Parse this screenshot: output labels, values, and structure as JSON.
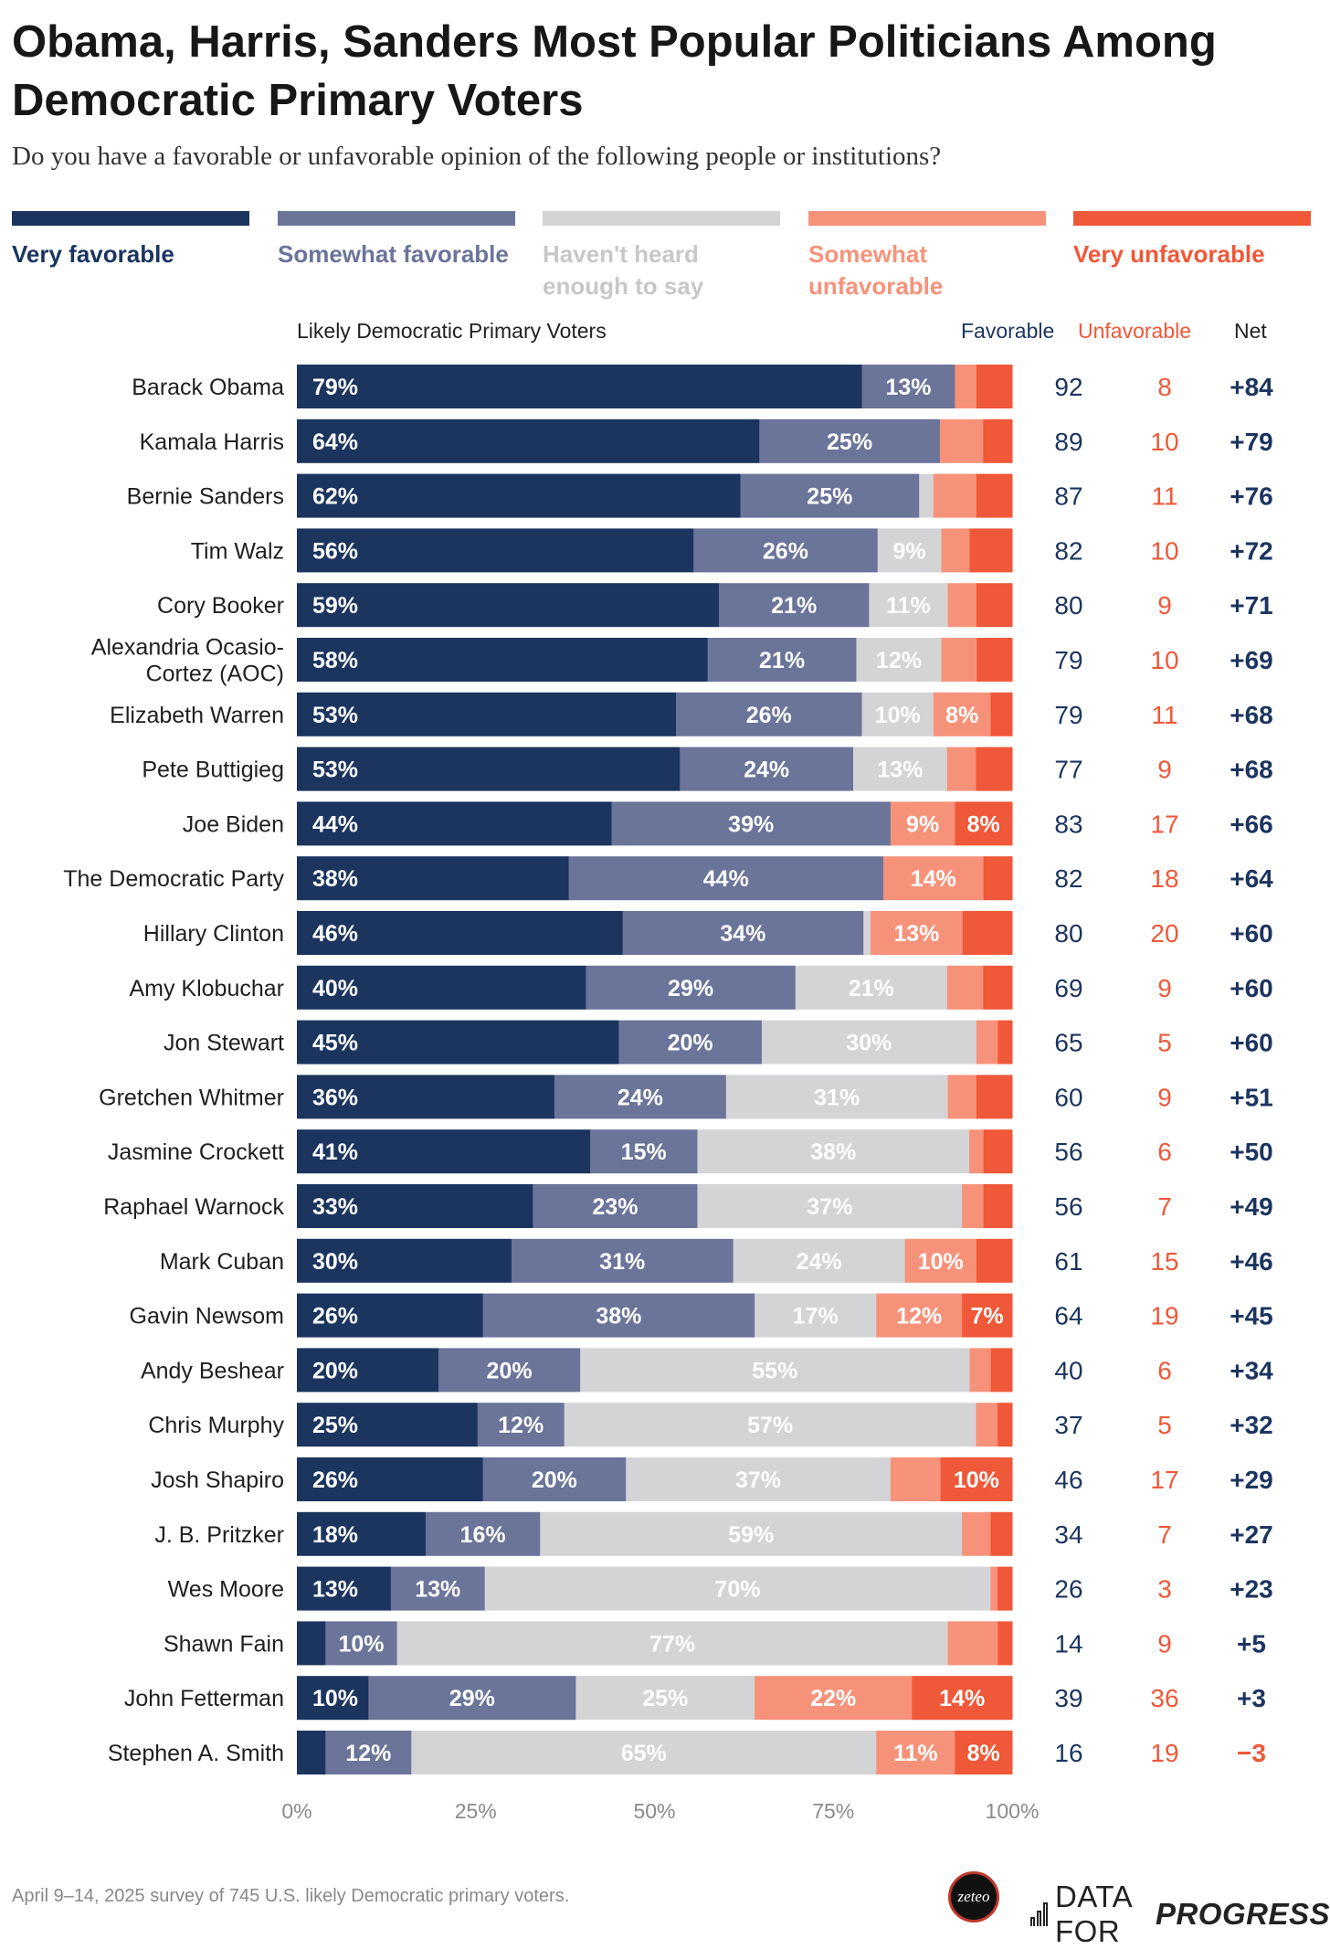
{
  "title": "Obama, Harris, Sanders Most Popular Politicians Among Democratic Primary Voters",
  "subtitle": "Do you have a favorable or unfavorable opinion of the following people or institutions?",
  "legend": [
    {
      "label": "Very favorable",
      "color": "#1b355f",
      "text_color": "#1b355f"
    },
    {
      "label": "Somewhat favorable",
      "color": "#6b7499",
      "text_color": "#6b7499"
    },
    {
      "label": "Haven't heard enough to say",
      "color": "#d4d4d6",
      "text_color": "#c7c7c9"
    },
    {
      "label": "Somewhat unfavorable",
      "color": "#f7927a",
      "text_color": "#f7927a"
    },
    {
      "label": "Very unfavorable",
      "color": "#ef5838",
      "text_color": "#ef5838"
    }
  ],
  "columns": {
    "group_label": "Likely Democratic Primary Voters",
    "favorable": "Favorable",
    "unfavorable": "Unfavorable",
    "net": "Net"
  },
  "colors": {
    "favorable_text": "#1b355f",
    "unfavorable_text": "#ef5838"
  },
  "footer": "April 9–14, 2025 survey of 745 U.S. likely Democratic primary voters.",
  "logos": {
    "zeteo": "zeteo",
    "dfp_plain": "DATA FOR",
    "dfp_bold": "PROGRESS"
  },
  "chart_data": {
    "type": "bar",
    "orientation": "horizontal-stacked-100",
    "title": "Obama, Harris, Sanders Most Popular Politicians Among Democratic Primary Voters",
    "xlabel": "",
    "ylabel": "",
    "xlim": [
      0,
      100
    ],
    "x_ticks": [
      "0%",
      "25%",
      "50%",
      "75%",
      "100%"
    ],
    "segments": [
      "Very favorable",
      "Somewhat favorable",
      "Haven't heard enough to say",
      "Somewhat unfavorable",
      "Very unfavorable"
    ],
    "rows": [
      {
        "name": "Barack Obama",
        "values": [
          79,
          13,
          0,
          3,
          5
        ],
        "labels": [
          "79%",
          "13%",
          "",
          "",
          ""
        ],
        "favorable": "92",
        "unfavorable": "8",
        "net": "+84"
      },
      {
        "name": "Kamala Harris",
        "values": [
          64,
          25,
          0,
          6,
          4
        ],
        "labels": [
          "64%",
          "25%",
          "",
          "",
          ""
        ],
        "favorable": "89",
        "unfavorable": "10",
        "net": "+79"
      },
      {
        "name": "Bernie Sanders",
        "values": [
          62,
          25,
          2,
          6,
          5
        ],
        "labels": [
          "62%",
          "25%",
          "",
          "",
          ""
        ],
        "favorable": "87",
        "unfavorable": "11",
        "net": "+76"
      },
      {
        "name": "Tim Walz",
        "values": [
          56,
          26,
          9,
          4,
          6
        ],
        "labels": [
          "56%",
          "26%",
          "9%",
          "",
          ""
        ],
        "favorable": "82",
        "unfavorable": "10",
        "net": "+72"
      },
      {
        "name": "Cory Booker",
        "values": [
          59,
          21,
          11,
          4,
          5
        ],
        "labels": [
          "59%",
          "21%",
          "11%",
          "",
          ""
        ],
        "favorable": "80",
        "unfavorable": "9",
        "net": "+71"
      },
      {
        "name": "Alexandria Ocasio-Cortez (AOC)",
        "name_lines": [
          "Alexandria Ocasio-",
          "Cortez (AOC)"
        ],
        "values": [
          58,
          21,
          12,
          5,
          5
        ],
        "labels": [
          "58%",
          "21%",
          "12%",
          "",
          ""
        ],
        "favorable": "79",
        "unfavorable": "10",
        "net": "+69"
      },
      {
        "name": "Elizabeth Warren",
        "values": [
          53,
          26,
          10,
          8,
          3
        ],
        "labels": [
          "53%",
          "26%",
          "10%",
          "8%",
          ""
        ],
        "favorable": "79",
        "unfavorable": "11",
        "net": "+68"
      },
      {
        "name": "Pete Buttigieg",
        "values": [
          53,
          24,
          13,
          4,
          5
        ],
        "labels": [
          "53%",
          "24%",
          "13%",
          "",
          ""
        ],
        "favorable": "77",
        "unfavorable": "9",
        "net": "+68"
      },
      {
        "name": "Joe Biden",
        "values": [
          44,
          39,
          0,
          9,
          8
        ],
        "labels": [
          "44%",
          "39%",
          "",
          "9%",
          "8%"
        ],
        "favorable": "83",
        "unfavorable": "17",
        "net": "+66"
      },
      {
        "name": "The Democratic Party",
        "values": [
          38,
          44,
          0,
          14,
          4
        ],
        "labels": [
          "38%",
          "44%",
          "",
          "14%",
          ""
        ],
        "favorable": "82",
        "unfavorable": "18",
        "net": "+64"
      },
      {
        "name": "Hillary Clinton",
        "values": [
          46,
          34,
          1,
          13,
          7
        ],
        "labels": [
          "46%",
          "34%",
          "",
          "13%",
          ""
        ],
        "favorable": "80",
        "unfavorable": "20",
        "net": "+60"
      },
      {
        "name": "Amy Klobuchar",
        "values": [
          40,
          29,
          21,
          5,
          4
        ],
        "labels": [
          "40%",
          "29%",
          "21%",
          "",
          ""
        ],
        "favorable": "69",
        "unfavorable": "9",
        "net": "+60"
      },
      {
        "name": "Jon Stewart",
        "values": [
          45,
          20,
          30,
          3,
          2
        ],
        "labels": [
          "45%",
          "20%",
          "30%",
          "",
          ""
        ],
        "favorable": "65",
        "unfavorable": "5",
        "net": "+60"
      },
      {
        "name": "Gretchen Whitmer",
        "values": [
          36,
          24,
          31,
          4,
          5
        ],
        "labels": [
          "36%",
          "24%",
          "31%",
          "",
          ""
        ],
        "favorable": "60",
        "unfavorable": "9",
        "net": "+51"
      },
      {
        "name": "Jasmine Crockett",
        "values": [
          41,
          15,
          38,
          2,
          4
        ],
        "labels": [
          "41%",
          "15%",
          "38%",
          "",
          ""
        ],
        "favorable": "56",
        "unfavorable": "6",
        "net": "+50"
      },
      {
        "name": "Raphael Warnock",
        "values": [
          33,
          23,
          37,
          3,
          4
        ],
        "labels": [
          "33%",
          "23%",
          "37%",
          "",
          ""
        ],
        "favorable": "56",
        "unfavorable": "7",
        "net": "+49"
      },
      {
        "name": "Mark Cuban",
        "values": [
          30,
          31,
          24,
          10,
          5
        ],
        "labels": [
          "30%",
          "31%",
          "24%",
          "10%",
          ""
        ],
        "favorable": "61",
        "unfavorable": "15",
        "net": "+46"
      },
      {
        "name": "Gavin Newsom",
        "values": [
          26,
          38,
          17,
          12,
          7
        ],
        "labels": [
          "26%",
          "38%",
          "17%",
          "12%",
          "7%"
        ],
        "favorable": "64",
        "unfavorable": "19",
        "net": "+45"
      },
      {
        "name": "Andy Beshear",
        "values": [
          20,
          20,
          55,
          3,
          3
        ],
        "labels": [
          "20%",
          "20%",
          "55%",
          "",
          ""
        ],
        "favorable": "40",
        "unfavorable": "6",
        "net": "+34"
      },
      {
        "name": "Chris Murphy",
        "values": [
          25,
          12,
          57,
          3,
          2
        ],
        "labels": [
          "25%",
          "12%",
          "57%",
          "",
          ""
        ],
        "favorable": "37",
        "unfavorable": "5",
        "net": "+32"
      },
      {
        "name": "Josh Shapiro",
        "values": [
          26,
          20,
          37,
          7,
          10
        ],
        "labels": [
          "26%",
          "20%",
          "37%",
          "",
          "10%"
        ],
        "favorable": "46",
        "unfavorable": "17",
        "net": "+29"
      },
      {
        "name": "J. B. Pritzker",
        "values": [
          18,
          16,
          59,
          4,
          3
        ],
        "labels": [
          "18%",
          "16%",
          "59%",
          "",
          ""
        ],
        "favorable": "34",
        "unfavorable": "7",
        "net": "+27"
      },
      {
        "name": "Wes Moore",
        "values": [
          13,
          13,
          70,
          1,
          2
        ],
        "labels": [
          "13%",
          "13%",
          "70%",
          "",
          ""
        ],
        "favorable": "26",
        "unfavorable": "3",
        "net": "+23"
      },
      {
        "name": "Shawn Fain",
        "values": [
          4,
          10,
          77,
          7,
          2
        ],
        "labels": [
          "",
          "10%",
          "77%",
          "",
          ""
        ],
        "favorable": "14",
        "unfavorable": "9",
        "net": "+5"
      },
      {
        "name": "John Fetterman",
        "values": [
          10,
          29,
          25,
          22,
          14
        ],
        "labels": [
          "10%",
          "29%",
          "25%",
          "22%",
          "14%"
        ],
        "favorable": "39",
        "unfavorable": "36",
        "net": "+3"
      },
      {
        "name": "Stephen A. Smith",
        "values": [
          4,
          12,
          65,
          11,
          8
        ],
        "labels": [
          "",
          "12%",
          "65%",
          "11%",
          "8%"
        ],
        "favorable": "16",
        "unfavorable": "19",
        "net": "−3"
      }
    ]
  }
}
